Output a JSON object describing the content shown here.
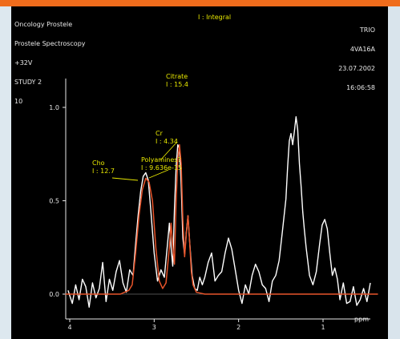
{
  "header": {
    "left_lines": [
      "Oncology Prostele",
      "Prostele Spectroscopy",
      "+32V",
      "STUDY 2",
      "10"
    ],
    "mode": "I : Integral",
    "right_lines": [
      "TRIO",
      "4VA16A",
      "23.07.2002",
      "16:06:58"
    ]
  },
  "colors": {
    "accent_bar": "#ef6c1c",
    "background": "#000000",
    "measured": "#ffffff",
    "fit": "#e8542a",
    "annotation": "#e8e800",
    "axis": "#e8e8e8"
  },
  "chart_data": {
    "type": "line",
    "xlabel": "ppm",
    "ylabel": "",
    "xlim": [
      4.05,
      0.35
    ],
    "ylim": [
      -0.12,
      1.2
    ],
    "x_ticks": [
      "4",
      "3",
      "2",
      "1"
    ],
    "y_ticks": [
      "0.0",
      "0.5",
      "1.0"
    ],
    "series": [
      {
        "name": "",
        "color": "#ffffff",
        "x": [
          4.02,
          3.97,
          3.93,
          3.89,
          3.85,
          3.81,
          3.77,
          3.73,
          3.69,
          3.65,
          3.61,
          3.57,
          3.53,
          3.49,
          3.45,
          3.41,
          3.37,
          3.33,
          3.29,
          3.25,
          3.22,
          3.19,
          3.16,
          3.13,
          3.1,
          3.07,
          3.04,
          3.0,
          2.96,
          2.92,
          2.88,
          2.84,
          2.82,
          2.8,
          2.78,
          2.76,
          2.74,
          2.72,
          2.7,
          2.68,
          2.66,
          2.64,
          2.62,
          2.6,
          2.58,
          2.55,
          2.52,
          2.49,
          2.46,
          2.43,
          2.4,
          2.36,
          2.32,
          2.28,
          2.24,
          2.2,
          2.16,
          2.12,
          2.08,
          2.04,
          2.0,
          1.96,
          1.92,
          1.88,
          1.84,
          1.8,
          1.76,
          1.72,
          1.68,
          1.64,
          1.6,
          1.56,
          1.52,
          1.48,
          1.44,
          1.42,
          1.4,
          1.38,
          1.36,
          1.34,
          1.32,
          1.3,
          1.28,
          1.26,
          1.24,
          1.22,
          1.2,
          1.16,
          1.12,
          1.08,
          1.04,
          1.01,
          0.98,
          0.95,
          0.92,
          0.89,
          0.86,
          0.83,
          0.8,
          0.76,
          0.72,
          0.68,
          0.64,
          0.6,
          0.56,
          0.52,
          0.48,
          0.44
        ],
        "y": [
          0.02,
          -0.05,
          0.05,
          -0.03,
          0.08,
          0.04,
          -0.07,
          0.06,
          -0.02,
          0.03,
          0.17,
          -0.04,
          0.08,
          0.02,
          0.12,
          0.18,
          0.06,
          0.01,
          0.13,
          0.1,
          0.27,
          0.42,
          0.55,
          0.63,
          0.65,
          0.61,
          0.45,
          0.22,
          0.07,
          0.13,
          0.09,
          0.28,
          0.38,
          0.25,
          0.15,
          0.45,
          0.68,
          0.8,
          0.78,
          0.59,
          0.3,
          0.21,
          0.33,
          0.42,
          0.28,
          0.1,
          0.03,
          0.02,
          0.09,
          0.05,
          0.09,
          0.17,
          0.22,
          0.07,
          0.1,
          0.12,
          0.22,
          0.3,
          0.24,
          0.13,
          0.02,
          -0.05,
          0.05,
          0.0,
          0.1,
          0.16,
          0.12,
          0.05,
          0.03,
          -0.04,
          0.07,
          0.1,
          0.18,
          0.34,
          0.51,
          0.68,
          0.82,
          0.86,
          0.8,
          0.87,
          0.95,
          0.88,
          0.7,
          0.58,
          0.44,
          0.34,
          0.25,
          0.1,
          0.05,
          0.12,
          0.27,
          0.37,
          0.4,
          0.35,
          0.22,
          0.1,
          0.14,
          0.08,
          -0.03,
          0.06,
          -0.05,
          -0.04,
          0.04,
          -0.06,
          -0.03,
          0.03,
          -0.04,
          0.06
        ]
      },
      {
        "name": "",
        "color": "#e8542a",
        "x": [
          4.05,
          3.6,
          3.4,
          3.3,
          3.26,
          3.22,
          3.18,
          3.14,
          3.1,
          3.06,
          3.02,
          2.98,
          2.94,
          2.9,
          2.86,
          2.82,
          2.8,
          2.78,
          2.76,
          2.74,
          2.72,
          2.7,
          2.68,
          2.66,
          2.64,
          2.62,
          2.6,
          2.58,
          2.56,
          2.54,
          2.5,
          2.4,
          2.0,
          1.0,
          0.35
        ],
        "y": [
          0.0,
          0.0,
          0.0,
          0.02,
          0.05,
          0.22,
          0.42,
          0.56,
          0.62,
          0.6,
          0.5,
          0.25,
          0.07,
          0.03,
          0.06,
          0.25,
          0.38,
          0.25,
          0.16,
          0.5,
          0.72,
          0.8,
          0.7,
          0.4,
          0.2,
          0.32,
          0.42,
          0.28,
          0.12,
          0.05,
          0.01,
          0.0,
          0.0,
          0.0,
          0.0
        ]
      }
    ],
    "annotations": [
      {
        "label": "Citrate",
        "value": "I : 15.4"
      },
      {
        "label": "Cr",
        "value": "I : 4.34"
      },
      {
        "label": "Polyamines?",
        "value": "I : 9.636e-15"
      },
      {
        "label": "Cho",
        "value": "I : 12.7"
      }
    ]
  }
}
